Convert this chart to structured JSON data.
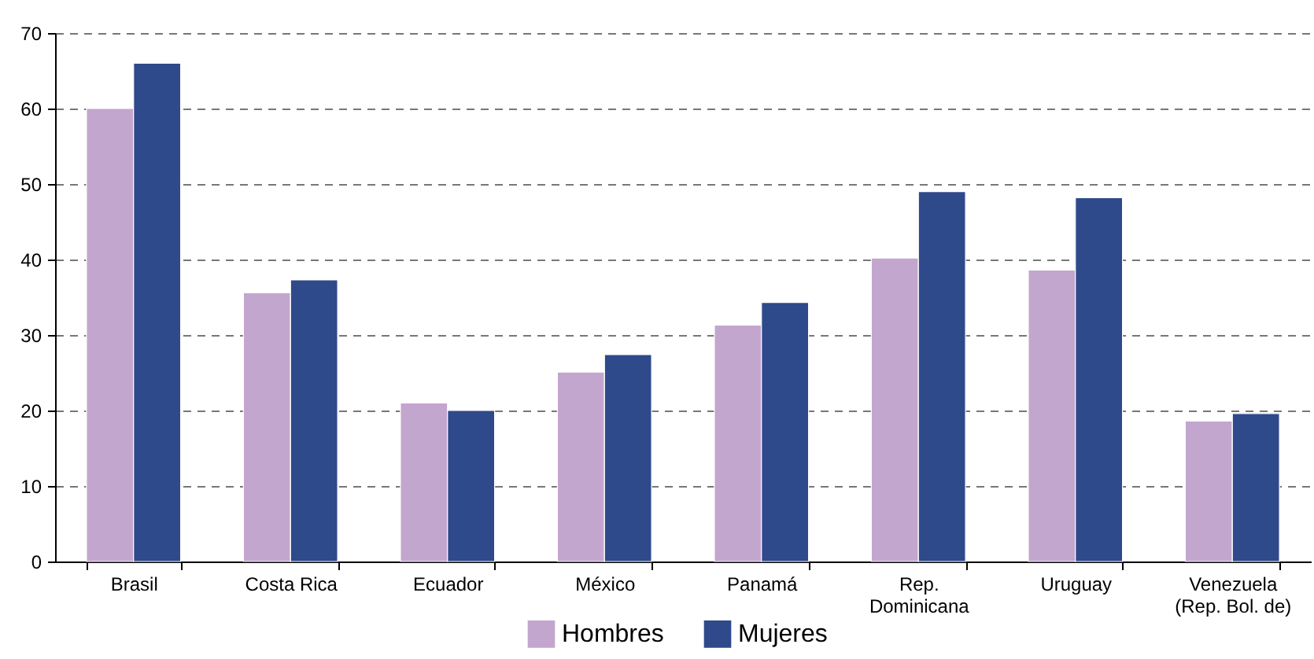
{
  "chart_data": {
    "type": "bar",
    "categories": [
      "Brasil",
      "Costa Rica",
      "Ecuador",
      "México",
      "Panamá",
      "Rep.\nDominicana",
      "Uruguay",
      "Venezuela\n(Rep. Bol. de)"
    ],
    "series": [
      {
        "name": "Hombres",
        "color": "#c3a6ce",
        "values": [
          60,
          35.6,
          21,
          25.1,
          31.3,
          40.2,
          38.6,
          18.6
        ]
      },
      {
        "name": "Mujeres",
        "color": "#2f4a8a",
        "values": [
          66,
          37.3,
          20,
          27.4,
          34.3,
          49,
          48.2,
          19.6
        ]
      }
    ],
    "ylim": [
      0,
      70
    ],
    "yticks": [
      0,
      10,
      20,
      30,
      40,
      50,
      60,
      70
    ],
    "grid": "y",
    "legend": "bottom"
  }
}
